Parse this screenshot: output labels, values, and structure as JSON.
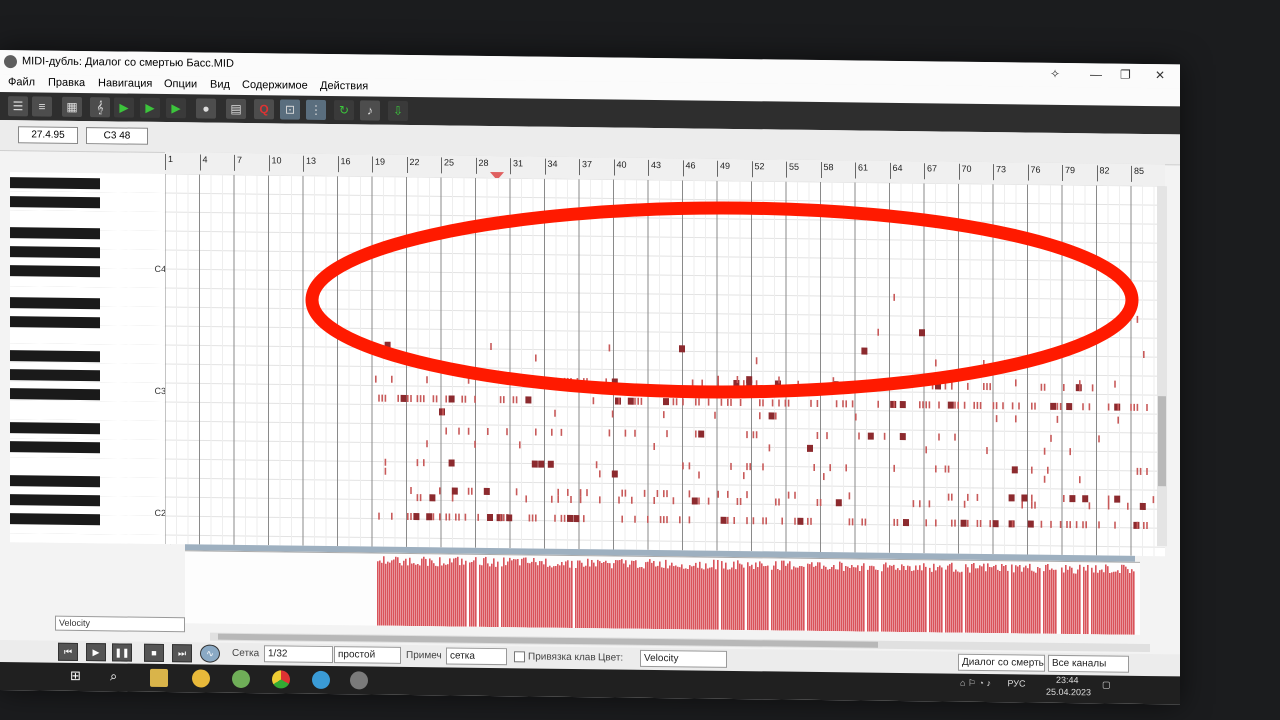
{
  "window": {
    "title": "MIDI-дубль: Диалог со смертью Басс.MID",
    "icons": [
      "pin-icon",
      "minimize-icon",
      "maximize-icon",
      "close-icon"
    ]
  },
  "menu": [
    "Файл",
    "Правка",
    "Навигация",
    "Опции",
    "Вид",
    "Содержимое",
    "Действия"
  ],
  "toolbar": {
    "tools": [
      "tracks-view",
      "list-view",
      "grid-view",
      "score-view",
      "play-from-start",
      "play-selection",
      "play-here",
      "record",
      "mixer",
      "step-edit",
      "quantize",
      "snap-mode",
      "grid-toggle",
      "loop",
      "metronome",
      "export"
    ],
    "quantize_glyph": "Q"
  },
  "info": {
    "position": "27.4.95",
    "note": "C3  48"
  },
  "ruler": {
    "marks": [
      "1",
      "4",
      "7",
      "10",
      "13",
      "16",
      "19",
      "22",
      "25",
      "28",
      "31",
      "34",
      "37",
      "40",
      "43",
      "46",
      "49",
      "52",
      "55",
      "58",
      "61",
      "64",
      "67",
      "70",
      "73",
      "76",
      "79",
      "82",
      "85"
    ]
  },
  "keyboard": {
    "labels": [
      "C4",
      "C3",
      "C2"
    ]
  },
  "velocity": {
    "label": "Velocity"
  },
  "bottom": {
    "grid_label": "Сетка",
    "grid_value": "1/32",
    "grid_mode": "простой",
    "snap_label": "Примеч",
    "snap_value": "сетка",
    "keybind_label": "Привязка клав",
    "color_label": "Цвет:",
    "color_value": "Velocity",
    "track_value": "Диалог со смерть",
    "channel_value": "Все каналы"
  },
  "taskbar": {
    "lang": "РУС",
    "time": "23:44",
    "date": "25.04.2023",
    "apps": [
      "start-icon",
      "search-icon",
      "file-explorer-icon",
      "yandex-icon",
      "app-icon",
      "chrome-icon",
      "telegram-icon",
      "midi-app-icon"
    ]
  },
  "colors": {
    "note": "#8c2a2e",
    "note_light": "#c85a5a",
    "velocity": "#d9535a",
    "annotation": "#ff1a00"
  }
}
